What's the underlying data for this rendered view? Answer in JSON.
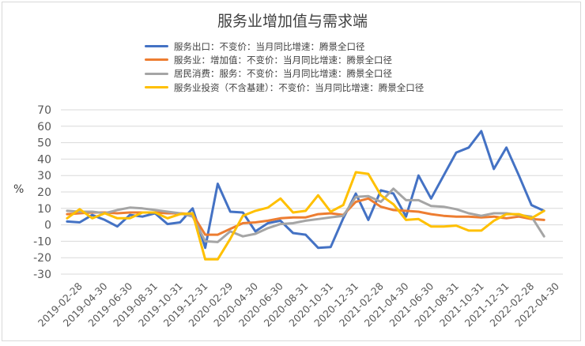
{
  "chart_data": {
    "type": "line",
    "title": "服务业增加值与需求端",
    "ylabel": "%",
    "ylim": [
      -30,
      70
    ],
    "yticks": [
      -30,
      -20,
      -10,
      0,
      10,
      20,
      30,
      40,
      50,
      60,
      70
    ],
    "grid": true,
    "legend_position": "top",
    "x_tick_labels": [
      "2019-02-28",
      "2019-04-30",
      "2019-06-30",
      "2019-08-31",
      "2019-10-31",
      "2019-12-31",
      "2020-02-29",
      "2020-04-30",
      "2020-06-30",
      "2020-08-31",
      "2020-10-31",
      "2020-12-31",
      "2021-02-28",
      "2021-04-30",
      "2021-06-30",
      "2021-08-31",
      "2021-10-31",
      "2021-12-31",
      "2022-02-28",
      "2022-04-30"
    ],
    "x": [
      "2019-02",
      "2019-03",
      "2019-04",
      "2019-05",
      "2019-06",
      "2019-07",
      "2019-08",
      "2019-09",
      "2019-10",
      "2019-11",
      "2019-12",
      "2020-01",
      "2020-02",
      "2020-03",
      "2020-04",
      "2020-05",
      "2020-06",
      "2020-07",
      "2020-08",
      "2020-09",
      "2020-10",
      "2020-11",
      "2020-12",
      "2021-01",
      "2021-02",
      "2021-03",
      "2021-04",
      "2021-05",
      "2021-06",
      "2021-07",
      "2021-08",
      "2021-09",
      "2021-10",
      "2021-11",
      "2021-12",
      "2022-01",
      "2022-02",
      "2022-03",
      "2022-04",
      "2022-05"
    ],
    "series": [
      {
        "name": "服务出口：不变价：当月同比增速：腾景全口径",
        "color": "#4472C4",
        "values": [
          2,
          1.5,
          6,
          3,
          -1,
          6,
          5,
          7,
          0.5,
          1.5,
          10,
          -14,
          25,
          8,
          7.5,
          -4,
          1,
          2.5,
          -5,
          -6,
          -14,
          -13.5,
          4,
          19,
          3,
          21,
          19,
          5,
          30,
          16,
          30,
          44,
          47,
          57,
          34,
          47,
          30,
          12,
          8.5,
          null
        ]
      },
      {
        "name": "服务业：增加值：不变价：当月同比增速：腾景全口径",
        "color": "#ED7D31",
        "values": [
          6.5,
          7,
          7.5,
          7.5,
          7,
          7.5,
          7.5,
          7.5,
          7,
          7,
          6.5,
          -6,
          -6,
          -2.5,
          1,
          1.5,
          2.5,
          4,
          4.5,
          4.5,
          6.5,
          7,
          6,
          14,
          16,
          11,
          9,
          8.5,
          8,
          6.5,
          5.5,
          5,
          5,
          4.5,
          5,
          4,
          5,
          3.5,
          3,
          null
        ]
      },
      {
        "name": "居民消费：服务：不变价：当月同比增速：腾景全口径",
        "color": "#A5A5A5",
        "values": [
          8.5,
          8,
          8,
          7,
          9,
          10.5,
          10,
          9,
          8,
          7,
          5,
          -10,
          -10.5,
          -4,
          -7,
          -5.5,
          -2,
          0.5,
          1,
          2.5,
          3.5,
          4.5,
          5.5,
          17,
          17.5,
          14,
          22,
          15,
          15,
          11.5,
          11,
          9.5,
          7,
          5.5,
          7,
          7,
          6,
          5,
          -7,
          null
        ]
      },
      {
        "name": "服务业投资（不含基建）：不变价：当月同比增速：腾景全口径",
        "color": "#FFC000",
        "values": [
          4,
          9.5,
          4,
          7,
          4,
          4,
          7.5,
          7.5,
          4,
          6.5,
          7,
          -21,
          -21,
          -8.5,
          5.5,
          8.5,
          10.5,
          16,
          7.5,
          8.5,
          18,
          8,
          12,
          32,
          31,
          18,
          12.5,
          3,
          3.5,
          -1,
          -1,
          -0.5,
          -3.5,
          -3.5,
          2.5,
          6.5,
          6.5,
          4,
          8.5,
          null
        ]
      }
    ]
  }
}
